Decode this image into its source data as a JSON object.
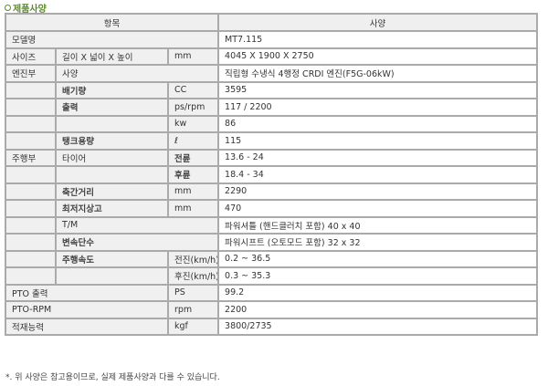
{
  "section_title": "제품사양",
  "header": {
    "item": "항목",
    "spec": "사양"
  },
  "rows": [
    {
      "c1": "모델명",
      "value": "MT7.115"
    },
    {
      "c1": "사이즈",
      "c2": "길이 X 넓이 X 높이",
      "unit": "mm",
      "value": "4045 X 1900 X 2750"
    },
    {
      "c1": "엔진부",
      "c2": "사양",
      "value": "직립형 수냉식 4행정 CRDI 엔진(F5G-06kW)"
    },
    {
      "c2": "배기량",
      "unit": "CC",
      "value": "3595"
    },
    {
      "c2": "출력",
      "unit": "ps/rpm",
      "value": "117 / 2200"
    },
    {
      "unit": "kw",
      "value": "86"
    },
    {
      "c2": "탱크용량",
      "unit": "ℓ",
      "value": "115"
    },
    {
      "c1": "주행부",
      "c2": "타이어",
      "unit": "전륜",
      "value": "13.6 - 24"
    },
    {
      "unit": "후륜",
      "value": "18.4 - 34"
    },
    {
      "c2": "축간거리",
      "unit": "mm",
      "value": "2290"
    },
    {
      "c2": "최저지상고",
      "unit": "mm",
      "value": "470"
    },
    {
      "c2": "T/M",
      "value": "파워셔틀 (핸드클러치 포함) 40 x 40"
    },
    {
      "c2": "변속단수",
      "value": "파워시프트 (오토모드 포함) 32 x 32"
    },
    {
      "c2": "주행속도",
      "unit": "전진(km/h)",
      "value": "0.2 ~ 36.5"
    },
    {
      "unit": "후진(km/h)",
      "value": "0.3 ~ 35.3"
    },
    {
      "c1": "PTO 출력",
      "unit": "PS",
      "value": "99.2"
    },
    {
      "c1": "PTO-RPM",
      "unit": "rpm",
      "value": "2200"
    },
    {
      "c1": "적재능력",
      "unit": "kgf",
      "value": "3800/2735"
    }
  ],
  "footnote": "*. 위 사양은 참고용이므로, 실제 제품사양과 다를 수 있습니다."
}
